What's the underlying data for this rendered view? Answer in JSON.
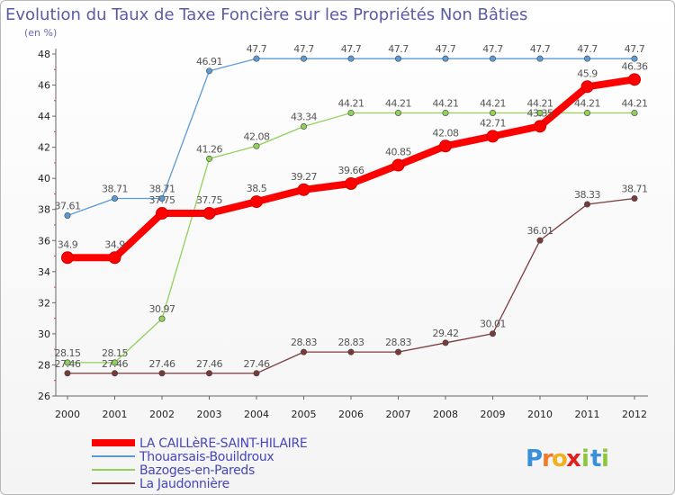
{
  "chart_data": {
    "type": "line",
    "title": "Evolution du Taux de Taxe Foncière sur les Propriétés Non Bâties",
    "ylabel": "(en %)",
    "xlabel": "",
    "categories": [
      "2000",
      "2001",
      "2002",
      "2003",
      "2004",
      "2005",
      "2006",
      "2007",
      "2008",
      "2009",
      "2010",
      "2011",
      "2012"
    ],
    "ylim": [
      26,
      48
    ],
    "yticks": [
      26,
      28,
      30,
      32,
      34,
      36,
      38,
      40,
      42,
      44,
      46,
      48
    ],
    "grid": false,
    "legend": "bottom-left",
    "series": [
      {
        "name": "LA CAILLèRE-SAINT-HILAIRE",
        "color": "#ff0000",
        "emphasis": true,
        "values": [
          34.9,
          34.9,
          37.75,
          37.75,
          38.5,
          39.27,
          39.66,
          40.85,
          42.08,
          42.71,
          43.35,
          45.9,
          46.36
        ],
        "labels": [
          "34.9",
          "34.9",
          "37.75",
          "37.75",
          "38.5",
          "39.27",
          "39.66",
          "40.85",
          "42.08",
          "42.71",
          "43.35",
          "45.9",
          "46.36"
        ]
      },
      {
        "name": "Thouarsais-Bouildroux",
        "color": "#5b9bd5",
        "values": [
          37.61,
          38.71,
          38.71,
          46.91,
          47.7,
          47.7,
          47.7,
          47.7,
          47.7,
          47.7,
          47.7,
          47.7,
          47.7
        ],
        "labels": [
          "37.61",
          "38.71",
          "38.71",
          "46.91",
          "47.7",
          "47.7",
          "47.7",
          "47.7",
          "47.7",
          "47.7",
          "47.7",
          "47.7",
          "47.7"
        ]
      },
      {
        "name": "Bazoges-en-Pareds",
        "color": "#8fd15a",
        "values": [
          28.15,
          28.15,
          30.97,
          41.26,
          42.08,
          43.34,
          44.21,
          44.21,
          44.21,
          44.21,
          44.21,
          44.21,
          44.21
        ],
        "labels": [
          "28.15",
          "28.15",
          "30.97",
          "41.26",
          "42.08",
          "43.34",
          "44.21",
          "44.21",
          "44.21",
          "44.21",
          "44.21",
          "44.21",
          "44.21"
        ]
      },
      {
        "name": "La Jaudonnière",
        "color": "#7b3a3a",
        "values": [
          27.46,
          27.46,
          27.46,
          27.46,
          27.46,
          28.83,
          28.83,
          28.83,
          29.42,
          30.01,
          36.01,
          38.33,
          38.71
        ],
        "labels": [
          "27.46",
          "27.46",
          "27.46",
          "27.46",
          "27.46",
          "28.83",
          "28.83",
          "28.83",
          "29.42",
          "30.01",
          "36.01",
          "38.33",
          "38.71"
        ]
      }
    ]
  },
  "logo": {
    "letters": [
      "P",
      "r",
      "o",
      "x",
      "i",
      "t",
      "i"
    ],
    "colors": [
      "#3a8fd9",
      "#f07a2a",
      "#f0b020",
      "#e02020",
      "#8cc63f",
      "#3a8fd9",
      "#8cc63f"
    ]
  }
}
